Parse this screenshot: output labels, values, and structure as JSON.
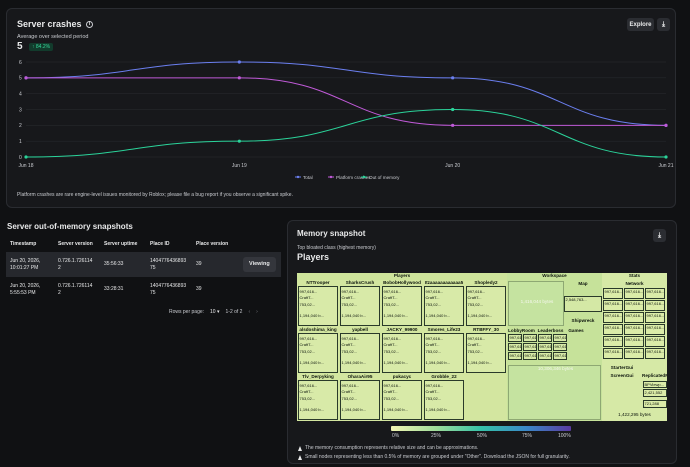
{
  "crashes": {
    "title": "Server crashes",
    "explore_label": "Explore",
    "avg_label": "Average over selected period",
    "avg_value": "5",
    "delta": "↑ 84.2%",
    "footnote": "Platform crashes are rare engine-level issues monitored by Roblox; please file a bug report if you observe a significant spike.",
    "legend": [
      "Total",
      "Platform crashes",
      "Out of memory"
    ]
  },
  "chart_data": {
    "type": "line",
    "x": [
      "Jun 18",
      "Jun 19",
      "Jun 20",
      "Jun 21"
    ],
    "series": [
      {
        "name": "Total",
        "values": [
          5,
          6,
          5,
          2
        ],
        "color": "#6b7ff0"
      },
      {
        "name": "Platform crashes",
        "values": [
          5,
          5,
          2,
          2
        ],
        "color": "#c05ad8"
      },
      {
        "name": "Out of memory",
        "values": [
          0,
          1,
          3,
          0
        ],
        "color": "#2bd39a"
      }
    ],
    "ylim": [
      0,
      6
    ],
    "yticks": [
      "0",
      "1",
      "2",
      "3",
      "4",
      "5",
      "6"
    ],
    "grid": true,
    "legend_position": "bottom"
  },
  "oom": {
    "title": "Server out-of-memory snapshots",
    "headers": [
      "Timestamp",
      "Server version",
      "Server uptime",
      "Place ID",
      "Place version"
    ],
    "rows": [
      {
        "ts1": "Jun 20, 2026,",
        "ts2": "10:01:27 PM",
        "ver1": "0.726.1.7261",
        "ver2": "14",
        "ver3": "2",
        "uptime": "35:56:33",
        "pid1": "14047764368",
        "pid2": "93",
        "pid3": "75",
        "pver": "39",
        "action": "Viewing"
      },
      {
        "ts1": "Jun 20, 2026,",
        "ts2": "5:55:53 PM",
        "ver1": "0.726.1.7261",
        "ver2": "14",
        "ver3": "2",
        "uptime": "33:28:31",
        "pid1": "14047764368",
        "pid2": "93",
        "pid3": "75",
        "pver": "39",
        "action": ""
      }
    ],
    "rows_per_page_label": "Rows per page:",
    "rows_per_page": "10",
    "range": "1-2 of 2"
  },
  "memory": {
    "title": "Memory snapshot",
    "subtitle": "Top bloated class (highest memory)",
    "class_name": "Players",
    "players_header": "Players",
    "workspace_header": "Workspace",
    "stats_header": "Stats",
    "map_label": "Map",
    "network_label": "Network",
    "shipwreck_label": "Shipwreck",
    "lobby_label": "LobbyRoom",
    "leaderboss_label": "Leaderboss",
    "games_label": "Games",
    "startergui_label": "StarterGui",
    "screengui_label": "ScreenGui",
    "replicated_label": "ReplicatedF",
    "bpviewp_label": "BPViewp...",
    "workspace_bytes": "1,416,044 bytes",
    "map_bytes": "2,548,763...",
    "big_bytes": "10,306,346 bytes",
    "starter_bytes": "1,422,295 bytes",
    "replicated_bytes": "2,421,552 ...",
    "bpview_bytes": "721,288 b...",
    "player_names_row1": [
      "NTTrooper",
      "SharksCrush",
      "BobobHollywood",
      "Itzaaaaaaaaaaaa5",
      "Shopledy2"
    ],
    "player_names_row2": [
      "alsdoshima_king",
      "yapbell",
      "JACKY_99900",
      "Smores_Life23",
      "RTBFFY_30"
    ],
    "player_names_row3": [
      "Tlv_Derpyking",
      "OharaAir95",
      "pukacyc",
      "Grobble_22"
    ],
    "cell_line1": "997,616...",
    "cell_line2": "CraftT...",
    "cell_line3": "753,02...",
    "cell_line4": "1,194,040 b...",
    "scale_ticks": [
      "0%",
      "25%",
      "50%",
      "75%",
      "100%"
    ],
    "note1": "The memory consumption represents relative size and can be approximations.",
    "note2": "Small nodes representing less than 0.5% of memory are grouped under \"Other\". Download the JSON for full granularity."
  }
}
